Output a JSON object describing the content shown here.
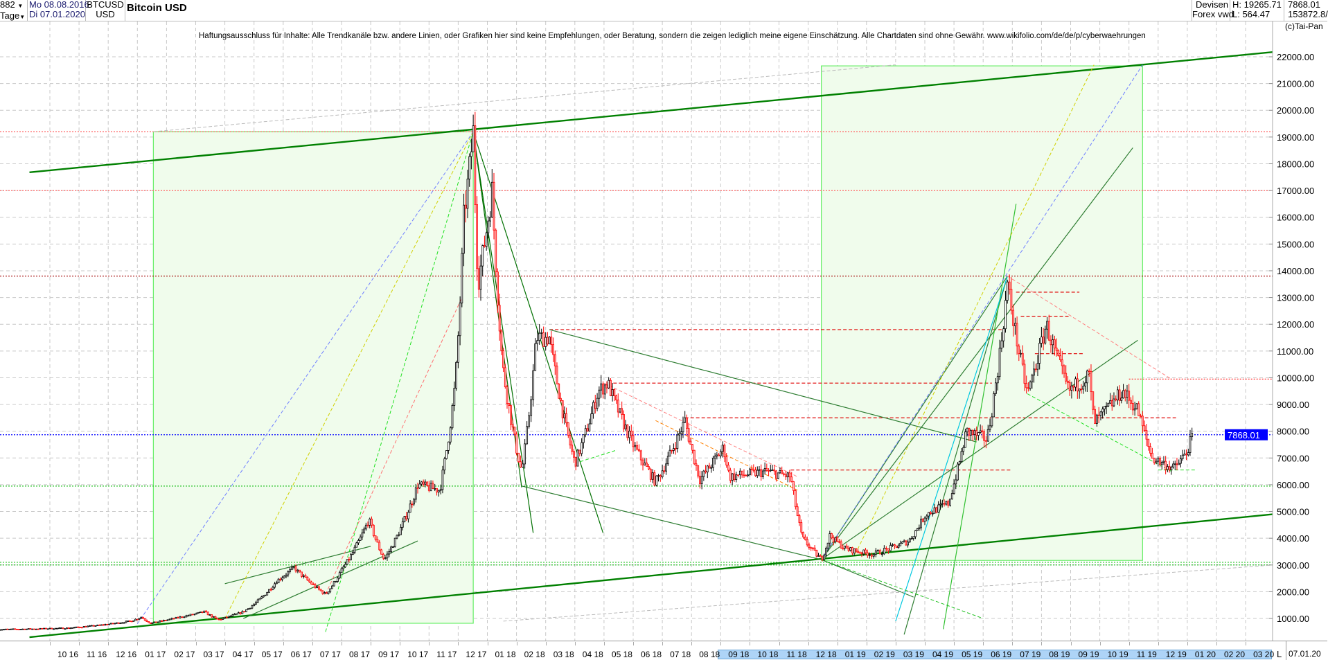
{
  "header": {
    "count": "882",
    "period": "Tage",
    "date_from": "Mo 08.08.2016",
    "date_to": "Di 07.01.2020",
    "symbol": "BTCUSD",
    "currency": "USD",
    "title": "Bitcoin USD",
    "market": "Devisen",
    "source": "Forex vwd",
    "high": "H: 19265.71",
    "low": "L: 564.47",
    "last": "7868.01",
    "volume": "153872.8/"
  },
  "disclaimer": "Haftungsausschluss für Inhalte: Alle Trendkanäle bzw. andere Linien, oder Grafiken hier sind keine Empfehlungen, oder Beratung, sondern die zeigen lediglich meine eigene Einschätzung. Alle Chartdaten sind ohne Gewähr.  www.wikifolio.com/de/de/p/cyberwaehrungen",
  "copyright": "(c)Tai-Pan",
  "footer": {
    "l_label": "L",
    "current_date": "07.01.20"
  },
  "colors": {
    "up": "#000000",
    "down": "#ff0000",
    "down_fill": "#ffb3b3",
    "last_price_bg": "#0000ff",
    "channel": "#008000",
    "box_fill": "#f0fcec",
    "box_stroke": "#66ee66",
    "highlight": "#aed4f7"
  },
  "chart_data": {
    "type": "candlestick",
    "title": "Bitcoin USD",
    "ylim": [
      0,
      22500
    ],
    "y_ticks": [
      "1000.00",
      "2000.00",
      "3000.00",
      "4000.00",
      "5000.00",
      "6000.00",
      "7000.00",
      "8000.00",
      "9000.00",
      "10000.00",
      "11000.00",
      "12000.00",
      "13000.00",
      "14000.00",
      "15000.00",
      "16000.00",
      "17000.00",
      "18000.00",
      "19000.00",
      "20000.00",
      "21000.00",
      "22000.00"
    ],
    "x_ticks": [
      "10 16",
      "11 16",
      "12 16",
      "01 17",
      "02 17",
      "03 17",
      "04 17",
      "05 17",
      "06 17",
      "07 17",
      "08 17",
      "09 17",
      "10 17",
      "11 17",
      "12 17",
      "01 18",
      "02 18",
      "03 18",
      "04 18",
      "05 18",
      "06 18",
      "07 18",
      "08 18",
      "09 18",
      "10 18",
      "11 18",
      "12 18",
      "01 19",
      "02 19",
      "03 19",
      "04 19",
      "05 19",
      "06 19",
      "07 19",
      "08 19",
      "09 19",
      "10 19",
      "11 19",
      "12 19",
      "01 20",
      "02 20",
      "03 20"
    ],
    "x_highlight": [
      "09 18",
      "03 20"
    ],
    "grid": true,
    "last_price": 7868.01,
    "last_price_label": "7868.01",
    "price_path": [
      [
        "2016-08-08",
        590
      ],
      [
        "2016-09-15",
        610
      ],
      [
        "2016-10-20",
        640
      ],
      [
        "2016-11-20",
        740
      ],
      [
        "2016-12-25",
        900
      ],
      [
        "2017-01-05",
        1050
      ],
      [
        "2017-01-15",
        820
      ],
      [
        "2017-02-20",
        1100
      ],
      [
        "2017-03-10",
        1250
      ],
      [
        "2017-03-25",
        950
      ],
      [
        "2017-04-20",
        1250
      ],
      [
        "2017-05-25",
        2400
      ],
      [
        "2017-06-12",
        2900
      ],
      [
        "2017-07-15",
        1900
      ],
      [
        "2017-08-01",
        2800
      ],
      [
        "2017-08-30",
        4700
      ],
      [
        "2017-09-15",
        3200
      ],
      [
        "2017-10-01",
        4300
      ],
      [
        "2017-10-20",
        6000
      ],
      [
        "2017-11-12",
        5800
      ],
      [
        "2017-11-28",
        9800
      ],
      [
        "2017-12-07",
        16000
      ],
      [
        "2017-12-17",
        19200
      ],
      [
        "2017-12-22",
        13500
      ],
      [
        "2018-01-06",
        17000
      ],
      [
        "2018-01-17",
        10500
      ],
      [
        "2018-02-06",
        6500
      ],
      [
        "2018-02-20",
        11500
      ],
      [
        "2018-03-05",
        11500
      ],
      [
        "2018-04-01",
        6800
      ],
      [
        "2018-04-25",
        9500
      ],
      [
        "2018-05-05",
        9800
      ],
      [
        "2018-06-01",
        7500
      ],
      [
        "2018-06-24",
        6100
      ],
      [
        "2018-07-25",
        8400
      ],
      [
        "2018-08-10",
        6200
      ],
      [
        "2018-09-04",
        7400
      ],
      [
        "2018-09-10",
        6300
      ],
      [
        "2018-10-20",
        6500
      ],
      [
        "2018-11-13",
        6300
      ],
      [
        "2018-11-25",
        4000
      ],
      [
        "2018-12-15",
        3200
      ],
      [
        "2018-12-24",
        4100
      ],
      [
        "2019-01-10",
        3600
      ],
      [
        "2019-02-07",
        3400
      ],
      [
        "2019-03-15",
        3900
      ],
      [
        "2019-04-02",
        4900
      ],
      [
        "2019-04-25",
        5300
      ],
      [
        "2019-05-14",
        8000
      ],
      [
        "2019-06-05",
        7700
      ],
      [
        "2019-06-26",
        13500
      ],
      [
        "2019-07-17",
        9400
      ],
      [
        "2019-08-06",
        12000
      ],
      [
        "2019-08-30",
        9500
      ],
      [
        "2019-09-20",
        10100
      ],
      [
        "2019-09-25",
        8300
      ],
      [
        "2019-10-25",
        9500
      ],
      [
        "2019-11-10",
        8800
      ],
      [
        "2019-11-25",
        7000
      ],
      [
        "2019-12-18",
        6600
      ],
      [
        "2019-12-31",
        7200
      ],
      [
        "2020-01-07",
        7868
      ]
    ],
    "boxes": [
      {
        "from": "2017-01-18",
        "to": "2017-12-17",
        "low": 820,
        "high": 19200
      },
      {
        "from": "2018-12-15",
        "to": "2019-11-15",
        "low": 3170,
        "high": 21660
      }
    ],
    "horizontal_lines": [
      {
        "price": 19200,
        "color": "#ff6060",
        "style": "dot"
      },
      {
        "price": 17000,
        "color": "#ff6060",
        "style": "dot"
      },
      {
        "price": 13800,
        "color": "#a00000",
        "style": "dot"
      },
      {
        "price": 9950,
        "color": "#ff3030",
        "style": "dot",
        "from": "2019-11-01"
      },
      {
        "price": 7868.01,
        "color": "#0000ff",
        "style": "dot"
      },
      {
        "price": 5950,
        "color": "#20c020",
        "style": "dot"
      },
      {
        "price": 3100,
        "color": "#20c020",
        "style": "dot"
      },
      {
        "price": 3000,
        "color": "#20c020",
        "style": "dot"
      },
      {
        "price": 11800,
        "color": "#e00000",
        "style": "dash",
        "from": "2018-03-05",
        "to": "2019-06-20"
      },
      {
        "price": 9800,
        "color": "#e00000",
        "style": "dash",
        "from": "2018-05-05",
        "to": "2019-06-10"
      },
      {
        "price": 8500,
        "color": "#e00000",
        "style": "dash",
        "from": "2018-07-25",
        "to": "2019-12-20"
      },
      {
        "price": 6550,
        "color": "#e00000",
        "style": "dash",
        "from": "2018-11-13",
        "to": "2019-07-01"
      },
      {
        "price": 13200,
        "color": "#e00000",
        "style": "dash",
        "from": "2019-07-05",
        "to": "2019-09-10"
      },
      {
        "price": 12300,
        "color": "#e00000",
        "style": "dash",
        "from": "2019-07-10",
        "to": "2019-09-01"
      },
      {
        "price": 10900,
        "color": "#e00000",
        "style": "dash",
        "from": "2019-07-25",
        "to": "2019-09-15"
      }
    ],
    "trend_lines": [
      {
        "from": [
          "2016-09-10",
          17680
        ],
        "to": [
          "2020-03-31",
          22180
        ],
        "color": "#008000",
        "width": 2.4,
        "style": "solid"
      },
      {
        "from": [
          "2016-09-10",
          300
        ],
        "to": [
          "2020-03-31",
          4900
        ],
        "color": "#008000",
        "width": 2.4,
        "style": "solid"
      },
      {
        "from": [
          "2017-12-17",
          19200
        ],
        "to": [
          "2018-02-17",
          4200
        ],
        "color": "#007000",
        "width": 1.2,
        "style": "solid"
      },
      {
        "from": [
          "2017-12-17",
          19200
        ],
        "to": [
          "2018-02-06",
          5900
        ],
        "color": "#007000",
        "width": 1.2,
        "style": "solid"
      },
      {
        "from": [
          "2017-12-17",
          19200
        ],
        "to": [
          "2018-04-30",
          4200
        ],
        "color": "#007000",
        "width": 1.2,
        "style": "solid"
      },
      {
        "from": [
          "2018-03-05",
          11800
        ],
        "to": [
          "2019-05-25",
          7600
        ],
        "color": "#2e7d32",
        "width": 1.2,
        "style": "solid"
      },
      {
        "from": [
          "2018-02-06",
          5950
        ],
        "to": [
          "2018-12-15",
          3200
        ],
        "color": "#2e7d32",
        "width": 1.2,
        "style": "solid"
      },
      {
        "from": [
          "2018-12-15",
          3200
        ],
        "to": [
          "2019-11-05",
          18600
        ],
        "color": "#2e7d32",
        "width": 1.2,
        "style": "solid"
      },
      {
        "from": [
          "2018-12-15",
          3200
        ],
        "to": [
          "2019-11-10",
          11400
        ],
        "color": "#2e7d32",
        "width": 1.2,
        "style": "solid"
      },
      {
        "from": [
          "2018-12-15",
          3200
        ],
        "to": [
          "2019-06-26",
          13800
        ],
        "color": "#2e7d32",
        "width": 1.2,
        "style": "solid"
      },
      {
        "from": [
          "2018-12-15",
          3200
        ],
        "to": [
          "2019-03-20",
          1800
        ],
        "color": "#2e7d32",
        "width": 1.2,
        "style": "solid"
      },
      {
        "from": [
          "2019-03-10",
          400
        ],
        "to": [
          "2019-06-26",
          13800
        ],
        "color": "#2e7d32",
        "width": 1.2,
        "style": "solid"
      },
      {
        "from": [
          "2019-04-20",
          600
        ],
        "to": [
          "2019-07-05",
          16500
        ],
        "color": "#30c030",
        "width": 1.2,
        "style": "solid"
      },
      {
        "from": [
          "2019-03-01",
          900
        ],
        "to": [
          "2019-06-26",
          13800
        ],
        "color": "#00c8e0",
        "width": 1.2,
        "style": "solid"
      },
      {
        "from": [
          "2017-04-01",
          2300
        ],
        "to": [
          "2017-09-01",
          3700
        ],
        "color": "#2e7d32",
        "width": 1.2,
        "style": "solid"
      },
      {
        "from": [
          "2017-04-20",
          1000
        ],
        "to": [
          "2017-10-20",
          3900
        ],
        "color": "#2e7d32",
        "width": 1.2,
        "style": "solid"
      },
      {
        "from": [
          "2017-01-01",
          800
        ],
        "to": [
          "2017-12-17",
          19200
        ],
        "color": "#7080ff",
        "width": 1,
        "style": "dash"
      },
      {
        "from": [
          "2017-04-01",
          1000
        ],
        "to": [
          "2017-12-17",
          19200
        ],
        "color": "#d0d000",
        "width": 1,
        "style": "dash"
      },
      {
        "from": [
          "2018-12-15",
          3200
        ],
        "to": [
          "2019-11-15",
          21700
        ],
        "color": "#7080ff",
        "width": 1,
        "style": "dash"
      },
      {
        "from": [
          "2019-01-20",
          3400
        ],
        "to": [
          "2019-09-25",
          21700
        ],
        "color": "#d0d000",
        "width": 1,
        "style": "dash"
      },
      {
        "from": [
          "2017-01-18",
          19200
        ],
        "to": [
          "2019-03-01",
          21700
        ],
        "color": "#bbbbbb",
        "width": 1,
        "style": "dash"
      },
      {
        "from": [
          "2018-01-18",
          900
        ],
        "to": [
          "2020-03-31",
          3000
        ],
        "color": "#bbbbbb",
        "width": 1,
        "style": "dash"
      },
      {
        "from": [
          "2017-07-15",
          1900
        ],
        "to": [
          "2017-12-05",
          13000
        ],
        "color": "#ff7070",
        "width": 1,
        "style": "dash"
      },
      {
        "from": [
          "2017-07-15",
          500
        ],
        "to": [
          "2017-12-17",
          19200
        ],
        "color": "#20e020",
        "width": 1,
        "style": "dash"
      },
      {
        "from": [
          "2018-06-24",
          8400
        ],
        "to": [
          "2018-11-20",
          5800
        ],
        "color": "#ff8000",
        "width": 1,
        "style": "dash"
      },
      {
        "from": [
          "2018-04-01",
          6800
        ],
        "to": [
          "2018-05-15",
          7300
        ],
        "color": "#20e020",
        "width": 1,
        "style": "dash"
      },
      {
        "from": [
          "2018-05-01",
          9800
        ],
        "to": [
          "2018-11-20",
          6300
        ],
        "color": "#ff8080",
        "width": 1,
        "style": "dash"
      },
      {
        "from": [
          "2019-06-26",
          13800
        ],
        "to": [
          "2019-12-15",
          9950
        ],
        "color": "#ff8080",
        "width": 1,
        "style": "dash"
      },
      {
        "from": [
          "2019-07-17",
          9400
        ],
        "to": [
          "2019-12-15",
          6500
        ],
        "color": "#20e020",
        "width": 1,
        "style": "dash"
      },
      {
        "from": [
          "2019-12-01",
          6550
        ],
        "to": [
          "2020-01-10",
          6550
        ],
        "color": "#20e020",
        "width": 1,
        "style": "dash"
      },
      {
        "from": [
          "2018-12-15",
          3200
        ],
        "to": [
          "2019-06-01",
          1000
        ],
        "color": "#20c020",
        "width": 1,
        "style": "dash"
      }
    ]
  }
}
